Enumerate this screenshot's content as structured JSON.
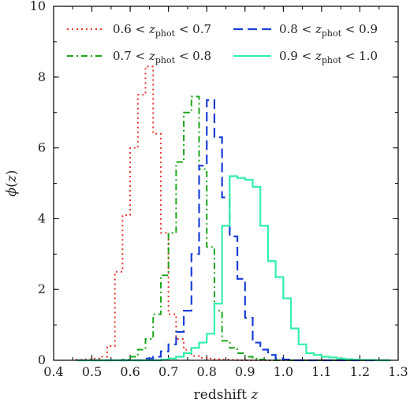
{
  "chart_data": {
    "type": "line",
    "title": "",
    "xlabel": "redshift z",
    "ylabel": "ϕ(z)",
    "xlim": [
      0.4,
      1.3
    ],
    "ylim": [
      0,
      10
    ],
    "xticks": [
      "0.4",
      "0.5",
      "0.6",
      "0.7",
      "0.8",
      "0.9",
      "1.0",
      "1.1",
      "1.2",
      "1.3"
    ],
    "yticks": [
      "0",
      "2",
      "4",
      "6",
      "8",
      "10"
    ],
    "grid": false,
    "legend_position": "top",
    "bin_edges": [
      0.46,
      0.48,
      0.5,
      0.52,
      0.54,
      0.56,
      0.58,
      0.6,
      0.62,
      0.64,
      0.66,
      0.68,
      0.7,
      0.72,
      0.74,
      0.76,
      0.78,
      0.8,
      0.82,
      0.84,
      0.86,
      0.88,
      0.9,
      0.92,
      0.94,
      0.96,
      0.98,
      1.0,
      1.02,
      1.04,
      1.06,
      1.08,
      1.1,
      1.12,
      1.14,
      1.16,
      1.18,
      1.2,
      1.22,
      1.24,
      1.26,
      1.28
    ],
    "series": [
      {
        "name": "0.6 < z_phot < 0.7",
        "label_parts": [
          "0.6 < ",
          "z",
          "phot",
          " < 0.7"
        ],
        "color": "#e8322a",
        "style": "dotted",
        "values": [
          0.02,
          0.03,
          0.05,
          0.1,
          0.4,
          2.5,
          4.1,
          6.0,
          7.5,
          8.3,
          6.4,
          3.6,
          1.3,
          0.6,
          0.3,
          0.12,
          0.07,
          0.05,
          0.03,
          0.02,
          0.01,
          0.0,
          0.0,
          0.0,
          0.0,
          0.0,
          0.0,
          0.0,
          0.0,
          0.0,
          0.0,
          0.0,
          0.0,
          0.0,
          0.0,
          0.0,
          0.0,
          0.0,
          0.0,
          0.0,
          0.0
        ]
      },
      {
        "name": "0.7 < z_phot < 0.8",
        "label_parts": [
          "0.7 < ",
          "z",
          "phot",
          " < 0.8"
        ],
        "color": "#1aa51a",
        "style": "dashdot",
        "values": [
          0.0,
          0.0,
          0.0,
          0.0,
          0.0,
          0.0,
          0.02,
          0.1,
          0.3,
          0.6,
          1.3,
          2.4,
          3.6,
          5.6,
          7.0,
          7.45,
          5.4,
          3.2,
          1.4,
          0.55,
          0.35,
          0.2,
          0.1,
          0.05,
          0.02,
          0.0,
          0.0,
          0.0,
          0.0,
          0.0,
          0.0,
          0.0,
          0.0,
          0.0,
          0.0,
          0.0,
          0.0,
          0.0,
          0.0,
          0.0,
          0.0
        ]
      },
      {
        "name": "0.8 < z_phot < 0.9",
        "label_parts": [
          "0.8 < ",
          "z",
          "phot",
          " < 0.9"
        ],
        "color": "#1a3fd6",
        "style": "dashed",
        "values": [
          0.0,
          0.0,
          0.0,
          0.0,
          0.0,
          0.0,
          0.0,
          0.0,
          0.0,
          0.05,
          0.1,
          0.25,
          0.45,
          0.8,
          1.4,
          3.0,
          5.5,
          7.35,
          6.3,
          4.6,
          3.5,
          2.3,
          1.2,
          0.5,
          0.3,
          0.15,
          0.05,
          0.02,
          0.0,
          0.0,
          0.0,
          0.0,
          0.0,
          0.0,
          0.0,
          0.0,
          0.0,
          0.0,
          0.0,
          0.0,
          0.0
        ]
      },
      {
        "name": "0.9 < z_phot < 1.0",
        "label_parts": [
          "0.9 < ",
          "z",
          "phot",
          " < 1.0"
        ],
        "color": "#33f0aa",
        "style": "solid",
        "values": [
          0.0,
          0.0,
          0.0,
          0.0,
          0.0,
          0.0,
          0.0,
          0.0,
          0.0,
          0.0,
          0.0,
          0.02,
          0.05,
          0.1,
          0.2,
          0.35,
          0.5,
          0.75,
          1.6,
          3.8,
          5.2,
          5.15,
          5.1,
          4.9,
          3.8,
          2.8,
          2.35,
          1.75,
          0.9,
          0.45,
          0.2,
          0.15,
          0.1,
          0.08,
          0.05,
          0.03,
          0.02,
          0.01,
          0.01,
          0.0,
          0.0
        ]
      }
    ]
  }
}
